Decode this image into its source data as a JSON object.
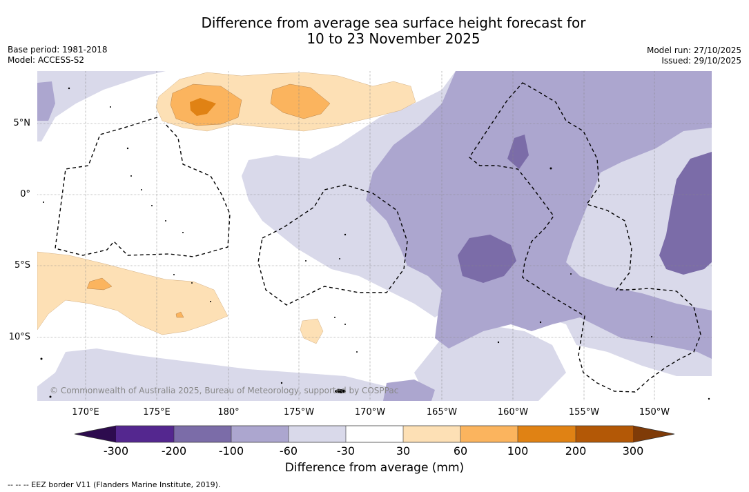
{
  "title": {
    "line1": "Difference from average sea surface height forecast for",
    "line2": "10 to 23 November 2025"
  },
  "meta": {
    "base_period": "Base period: 1981-2018",
    "model": "Model: ACCESS-S2",
    "model_run": "Model run: 27/10/2025",
    "issued": "Issued: 29/10/2025"
  },
  "axes": {
    "lat_labels": [
      "5°N",
      "0°",
      "5°S",
      "10°S"
    ],
    "lon_labels": [
      "170°E",
      "175°E",
      "180°",
      "175°W",
      "170°W",
      "165°W",
      "160°W",
      "155°W",
      "150°W"
    ]
  },
  "copyright": "© Commonwealth of Australia 2025, Bureau of Meteorology, supported by COSPPac",
  "colorbar": {
    "ticks": [
      "-300",
      "-200",
      "-100",
      "-60",
      "-30",
      "30",
      "60",
      "100",
      "200",
      "300"
    ],
    "colors": [
      "#2d0b4e",
      "#54278f",
      "#7b6ca8",
      "#aca6cf",
      "#d9d9ea",
      "#ffffff",
      "#fde0b5",
      "#fbb45e",
      "#e08214",
      "#b35806",
      "#7f3b08"
    ],
    "label": "Difference from average (mm)"
  },
  "legend": {
    "eez": "--  --  -- EEZ border V11 (Flanders Marine Institute, 2019)."
  }
}
